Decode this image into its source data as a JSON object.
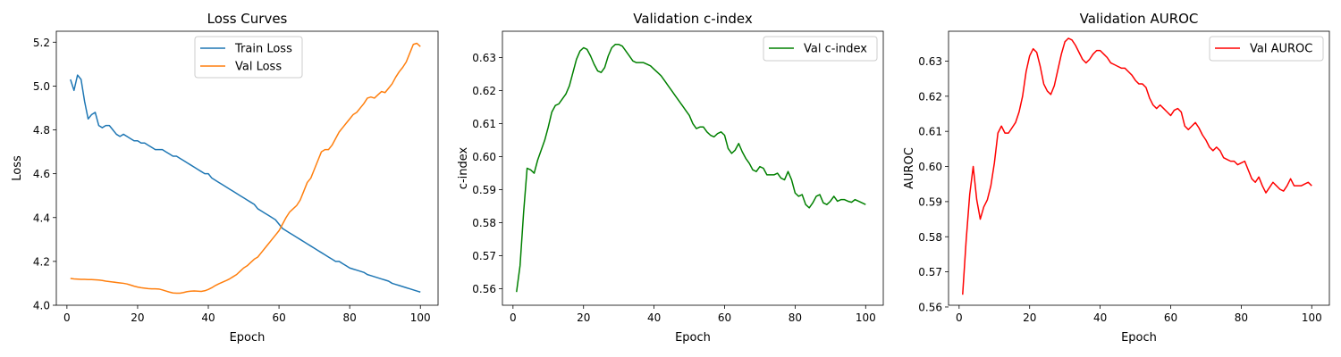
{
  "colors": {
    "train": "#1f77b4",
    "val": "#ff7f0e",
    "cindex": "#008000",
    "auroc": "#ff0000"
  },
  "chart_data": [
    {
      "type": "line",
      "title": "Loss Curves",
      "xlabel": "Epoch",
      "ylabel": "Loss",
      "xlim": [
        -3,
        105
      ],
      "ylim": [
        4.0,
        5.25
      ],
      "xticks": [
        0,
        20,
        40,
        60,
        80,
        100
      ],
      "yticks": [
        4.0,
        4.2,
        4.4,
        4.6,
        4.8,
        5.0,
        5.2
      ],
      "yticks_text": [
        "4.0",
        "4.2",
        "4.4",
        "4.6",
        "4.8",
        "5.0",
        "5.2"
      ],
      "legend": "upper center",
      "series": [
        {
          "name": "Train Loss",
          "color_key": "train",
          "x": [
            1,
            2,
            3,
            4,
            5,
            6,
            7,
            8,
            9,
            10,
            11,
            12,
            13,
            14,
            15,
            16,
            17,
            18,
            19,
            20,
            21,
            22,
            23,
            24,
            25,
            26,
            27,
            28,
            29,
            30,
            31,
            32,
            33,
            34,
            35,
            36,
            37,
            38,
            39,
            40,
            41,
            42,
            43,
            44,
            45,
            46,
            47,
            48,
            49,
            50,
            51,
            52,
            53,
            54,
            55,
            56,
            57,
            58,
            59,
            60,
            61,
            62,
            63,
            64,
            65,
            66,
            67,
            68,
            69,
            70,
            71,
            72,
            73,
            74,
            75,
            76,
            77,
            78,
            79,
            80,
            81,
            82,
            83,
            84,
            85,
            86,
            87,
            88,
            89,
            90,
            91,
            92,
            93,
            94,
            95,
            96,
            97,
            98,
            99,
            100
          ],
          "y": [
            5.03,
            4.98,
            5.05,
            5.03,
            4.93,
            4.85,
            4.87,
            4.88,
            4.82,
            4.81,
            4.82,
            4.82,
            4.8,
            4.78,
            4.77,
            4.78,
            4.77,
            4.76,
            4.75,
            4.75,
            4.74,
            4.74,
            4.73,
            4.72,
            4.71,
            4.71,
            4.71,
            4.7,
            4.69,
            4.68,
            4.68,
            4.67,
            4.66,
            4.65,
            4.64,
            4.63,
            4.62,
            4.61,
            4.6,
            4.6,
            4.58,
            4.57,
            4.56,
            4.55,
            4.54,
            4.53,
            4.52,
            4.51,
            4.5,
            4.49,
            4.48,
            4.47,
            4.46,
            4.44,
            4.43,
            4.42,
            4.41,
            4.4,
            4.39,
            4.37,
            4.35,
            4.34,
            4.33,
            4.32,
            4.31,
            4.3,
            4.29,
            4.28,
            4.27,
            4.26,
            4.25,
            4.24,
            4.23,
            4.22,
            4.21,
            4.2,
            4.2,
            4.19,
            4.18,
            4.17,
            4.165,
            4.16,
            4.155,
            4.15,
            4.14,
            4.135,
            4.13,
            4.125,
            4.12,
            4.115,
            4.11,
            4.1,
            4.095,
            4.09,
            4.085,
            4.08,
            4.075,
            4.07,
            4.065,
            4.06
          ]
        },
        {
          "name": "Val Loss",
          "color_key": "val",
          "x": [
            1,
            2,
            3,
            4,
            5,
            6,
            7,
            8,
            9,
            10,
            11,
            12,
            13,
            14,
            15,
            16,
            17,
            18,
            19,
            20,
            21,
            22,
            23,
            24,
            25,
            26,
            27,
            28,
            29,
            30,
            31,
            32,
            33,
            34,
            35,
            36,
            37,
            38,
            39,
            40,
            41,
            42,
            43,
            44,
            45,
            46,
            47,
            48,
            49,
            50,
            51,
            52,
            53,
            54,
            55,
            56,
            57,
            58,
            59,
            60,
            61,
            62,
            63,
            64,
            65,
            66,
            67,
            68,
            69,
            70,
            71,
            72,
            73,
            74,
            75,
            76,
            77,
            78,
            79,
            80,
            81,
            82,
            83,
            84,
            85,
            86,
            87,
            88,
            89,
            90,
            91,
            92,
            93,
            94,
            95,
            96,
            97,
            98,
            99,
            100
          ],
          "y": [
            4.122,
            4.12,
            4.119,
            4.118,
            4.118,
            4.117,
            4.117,
            4.116,
            4.115,
            4.113,
            4.11,
            4.108,
            4.106,
            4.104,
            4.102,
            4.1,
            4.097,
            4.092,
            4.087,
            4.083,
            4.08,
            4.078,
            4.076,
            4.075,
            4.075,
            4.074,
            4.07,
            4.065,
            4.06,
            4.056,
            4.055,
            4.055,
            4.058,
            4.062,
            4.064,
            4.065,
            4.064,
            4.063,
            4.066,
            4.072,
            4.08,
            4.09,
            4.098,
            4.105,
            4.112,
            4.12,
            4.13,
            4.14,
            4.155,
            4.17,
            4.18,
            4.195,
            4.21,
            4.22,
            4.24,
            4.26,
            4.28,
            4.3,
            4.32,
            4.34,
            4.37,
            4.4,
            4.425,
            4.44,
            4.455,
            4.48,
            4.52,
            4.56,
            4.58,
            4.62,
            4.66,
            4.7,
            4.71,
            4.71,
            4.73,
            4.76,
            4.79,
            4.81,
            4.83,
            4.85,
            4.87,
            4.88,
            4.9,
            4.92,
            4.945,
            4.95,
            4.945,
            4.96,
            4.975,
            4.97,
            4.99,
            5.01,
            5.04,
            5.065,
            5.085,
            5.11,
            5.15,
            5.19,
            5.195,
            5.18
          ]
        }
      ]
    },
    {
      "type": "line",
      "title": "Validation c-index",
      "xlabel": "Epoch",
      "ylabel": "c-index",
      "xlim": [
        -3,
        105
      ],
      "ylim": [
        0.555,
        0.638
      ],
      "xticks": [
        0,
        20,
        40,
        60,
        80,
        100
      ],
      "yticks": [
        0.56,
        0.57,
        0.58,
        0.59,
        0.6,
        0.61,
        0.62,
        0.63
      ],
      "yticks_text": [
        "0.56",
        "0.57",
        "0.58",
        "0.59",
        "0.60",
        "0.61",
        "0.62",
        "0.63"
      ],
      "legend": "upper right",
      "series": [
        {
          "name": "Val c-index",
          "color_key": "cindex",
          "x": [
            1,
            2,
            3,
            4,
            5,
            6,
            7,
            8,
            9,
            10,
            11,
            12,
            13,
            14,
            15,
            16,
            17,
            18,
            19,
            20,
            21,
            22,
            23,
            24,
            25,
            26,
            27,
            28,
            29,
            30,
            31,
            32,
            33,
            34,
            35,
            36,
            37,
            38,
            39,
            40,
            41,
            42,
            43,
            44,
            45,
            46,
            47,
            48,
            49,
            50,
            51,
            52,
            53,
            54,
            55,
            56,
            57,
            58,
            59,
            60,
            61,
            62,
            63,
            64,
            65,
            66,
            67,
            68,
            69,
            70,
            71,
            72,
            73,
            74,
            75,
            76,
            77,
            78,
            79,
            80,
            81,
            82,
            83,
            84,
            85,
            86,
            87,
            88,
            89,
            90,
            91,
            92,
            93,
            94,
            95,
            96,
            97,
            98,
            99,
            100
          ],
          "y": [
            0.559,
            0.567,
            0.583,
            0.5965,
            0.596,
            0.595,
            0.599,
            0.602,
            0.605,
            0.609,
            0.6135,
            0.6155,
            0.616,
            0.6175,
            0.619,
            0.6215,
            0.6255,
            0.6295,
            0.632,
            0.633,
            0.6325,
            0.6305,
            0.628,
            0.626,
            0.6255,
            0.627,
            0.6305,
            0.633,
            0.634,
            0.634,
            0.6335,
            0.632,
            0.6305,
            0.629,
            0.6285,
            0.6285,
            0.6285,
            0.628,
            0.6275,
            0.6265,
            0.6255,
            0.6245,
            0.623,
            0.6215,
            0.62,
            0.6185,
            0.617,
            0.6155,
            0.614,
            0.6125,
            0.61,
            0.6085,
            0.609,
            0.609,
            0.6075,
            0.6065,
            0.606,
            0.607,
            0.6075,
            0.6065,
            0.6025,
            0.601,
            0.602,
            0.604,
            0.6015,
            0.5995,
            0.598,
            0.596,
            0.5955,
            0.597,
            0.5965,
            0.5945,
            0.5945,
            0.5945,
            0.595,
            0.5935,
            0.593,
            0.5955,
            0.593,
            0.589,
            0.588,
            0.5885,
            0.5855,
            0.5845,
            0.586,
            0.588,
            0.5885,
            0.586,
            0.5855,
            0.5865,
            0.588,
            0.5865,
            0.587,
            0.587,
            0.5865,
            0.5862,
            0.587,
            0.5865,
            0.586,
            0.5855
          ]
        }
      ]
    },
    {
      "type": "line",
      "title": "Validation AUROC",
      "xlabel": "Epoch",
      "ylabel": "AUROC",
      "xlim": [
        -3,
        105
      ],
      "ylim": [
        0.5605,
        0.6385
      ],
      "xticks": [
        0,
        20,
        40,
        60,
        80,
        100
      ],
      "yticks": [
        0.56,
        0.57,
        0.58,
        0.59,
        0.6,
        0.61,
        0.62,
        0.63
      ],
      "yticks_text": [
        "0.56",
        "0.57",
        "0.58",
        "0.59",
        "0.60",
        "0.61",
        "0.62",
        "0.63"
      ],
      "legend": "upper right",
      "series": [
        {
          "name": "Val AUROC",
          "color_key": "auroc",
          "x": [
            1,
            2,
            3,
            4,
            5,
            6,
            7,
            8,
            9,
            10,
            11,
            12,
            13,
            14,
            15,
            16,
            17,
            18,
            19,
            20,
            21,
            22,
            23,
            24,
            25,
            26,
            27,
            28,
            29,
            30,
            31,
            32,
            33,
            34,
            35,
            36,
            37,
            38,
            39,
            40,
            41,
            42,
            43,
            44,
            45,
            46,
            47,
            48,
            49,
            50,
            51,
            52,
            53,
            54,
            55,
            56,
            57,
            58,
            59,
            60,
            61,
            62,
            63,
            64,
            65,
            66,
            67,
            68,
            69,
            70,
            71,
            72,
            73,
            74,
            75,
            76,
            77,
            78,
            79,
            80,
            81,
            82,
            83,
            84,
            85,
            86,
            87,
            88,
            89,
            90,
            91,
            92,
            93,
            94,
            95,
            96,
            97,
            98,
            99,
            100
          ],
          "y": [
            0.5635,
            0.579,
            0.592,
            0.6,
            0.5905,
            0.585,
            0.5885,
            0.5905,
            0.5945,
            0.601,
            0.6095,
            0.6115,
            0.6095,
            0.6095,
            0.611,
            0.6125,
            0.6155,
            0.62,
            0.627,
            0.6315,
            0.6335,
            0.6325,
            0.6285,
            0.6235,
            0.6215,
            0.6205,
            0.623,
            0.6275,
            0.632,
            0.6355,
            0.6365,
            0.636,
            0.6345,
            0.6325,
            0.6305,
            0.6295,
            0.6305,
            0.632,
            0.633,
            0.633,
            0.632,
            0.631,
            0.6295,
            0.629,
            0.6285,
            0.628,
            0.628,
            0.627,
            0.626,
            0.6245,
            0.6235,
            0.6235,
            0.6225,
            0.6195,
            0.6175,
            0.6165,
            0.6175,
            0.6165,
            0.6155,
            0.6145,
            0.616,
            0.6165,
            0.6155,
            0.6115,
            0.6105,
            0.6115,
            0.6125,
            0.611,
            0.609,
            0.6075,
            0.6055,
            0.6045,
            0.6055,
            0.6045,
            0.6025,
            0.602,
            0.6015,
            0.6015,
            0.6005,
            0.601,
            0.6015,
            0.599,
            0.5965,
            0.5955,
            0.597,
            0.5945,
            0.5925,
            0.594,
            0.5955,
            0.5945,
            0.5935,
            0.593,
            0.5945,
            0.5965,
            0.5945,
            0.5945,
            0.5945,
            0.595,
            0.5955,
            0.5945
          ]
        }
      ]
    }
  ]
}
